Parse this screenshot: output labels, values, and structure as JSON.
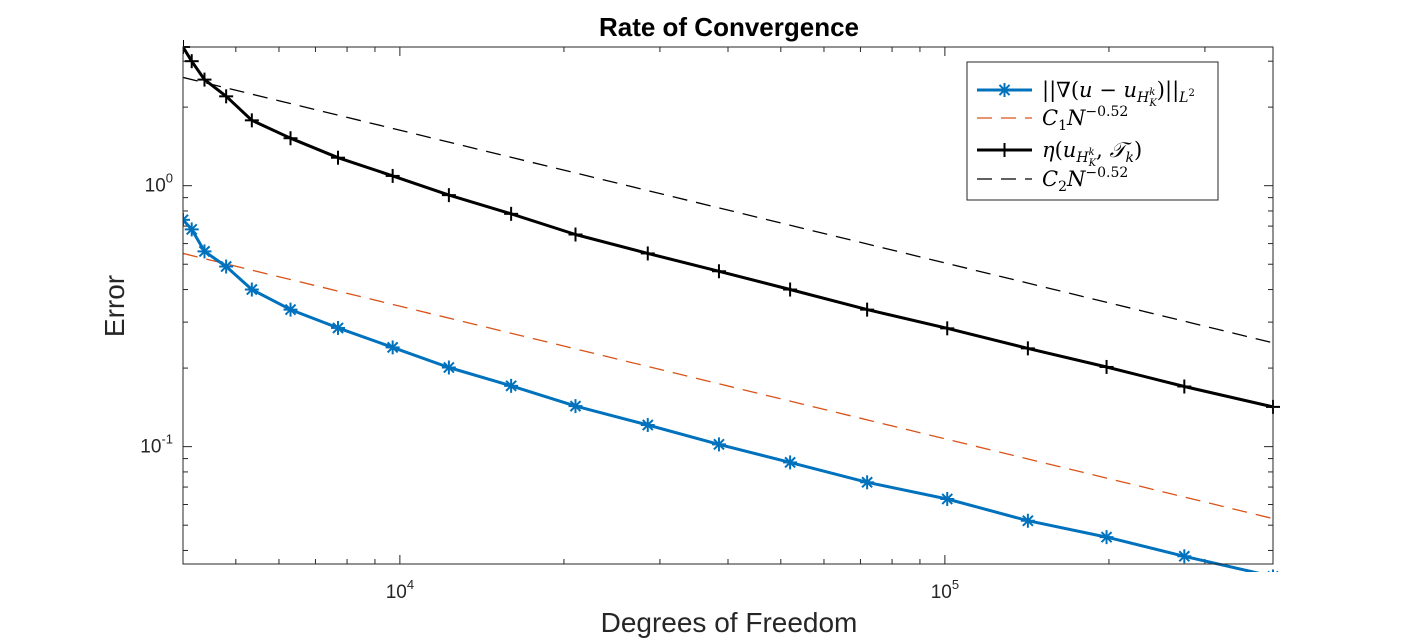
{
  "chart_data": {
    "type": "line",
    "title": "Rate of Convergence",
    "xlabel": "Degrees of Freedom",
    "ylabel": "Error",
    "xscale": "log",
    "yscale": "log",
    "xlim": [
      4000,
      400000
    ],
    "ylim": [
      0.0355,
      3.4
    ],
    "xticks": [
      {
        "base": "10",
        "exp": "4",
        "value": 10000
      },
      {
        "base": "10",
        "exp": "5",
        "value": 100000
      }
    ],
    "yticks": [
      {
        "base": "10",
        "exp": "0",
        "value": 1
      },
      {
        "base": "10",
        "exp": "-1",
        "value": 0.1
      }
    ],
    "legend_position": "top-right",
    "series": [
      {
        "name": "||∇(u − u_{H_K^k})||_{L^2}",
        "color": "#0072BD",
        "style": "solid",
        "marker": "asterisk",
        "x": [
          4000,
          4150,
          4380,
          4800,
          5350,
          6300,
          7700,
          9700,
          12300,
          16000,
          21000,
          28500,
          38500,
          52000,
          72000,
          101000,
          142000,
          198000,
          275000,
          400000
        ],
        "y": [
          0.74,
          0.68,
          0.56,
          0.49,
          0.4,
          0.335,
          0.285,
          0.24,
          0.201,
          0.171,
          0.143,
          0.121,
          0.102,
          0.087,
          0.073,
          0.063,
          0.052,
          0.045,
          0.038,
          0.0318
        ]
      },
      {
        "name": "C_1 N^{-0.52}",
        "color": "#D95319",
        "style": "dashed",
        "marker": "none",
        "x": [
          4000,
          400000
        ],
        "y": [
          0.55,
          0.053
        ]
      },
      {
        "name": "η(u_{H_K^k}, T_k)",
        "color": "#000000",
        "style": "solid",
        "marker": "plus",
        "x": [
          4000,
          4150,
          4380,
          4800,
          5350,
          6300,
          7700,
          9700,
          12300,
          16000,
          21000,
          28500,
          38500,
          52000,
          72000,
          101000,
          142000,
          198000,
          275000,
          400000
        ],
        "y": [
          3.4,
          3.0,
          2.55,
          2.2,
          1.78,
          1.52,
          1.28,
          1.09,
          0.92,
          0.78,
          0.65,
          0.55,
          0.47,
          0.4,
          0.335,
          0.284,
          0.238,
          0.202,
          0.17,
          0.142
        ]
      },
      {
        "name": "C_2 N^{-0.52}",
        "color": "#000000",
        "style": "dashed",
        "marker": "none",
        "x": [
          4000,
          400000
        ],
        "y": [
          2.6,
          0.25
        ]
      }
    ],
    "legend": [
      {
        "pre": "||∇(",
        "sym": "u",
        "mid": " − ",
        "sym2": "u",
        "sub": "H",
        "subsup": "k",
        "subsub": "K",
        "post": ")||",
        "sub2": "L",
        "sub2sup": "2"
      },
      {
        "sym": "C",
        "sub": "1",
        "sym2": "N",
        "sup": "−0.52"
      },
      {
        "sym": "η",
        "paren": "(",
        "sym2": "u",
        "sub": "H",
        "subsup": "k",
        "subsub": "K",
        "comma": ", ",
        "sym3": "𝒯",
        "sub3": "k",
        "close": ")"
      },
      {
        "sym": "C",
        "sub": "2",
        "sym2": "N",
        "sup": "−0.52"
      }
    ]
  }
}
